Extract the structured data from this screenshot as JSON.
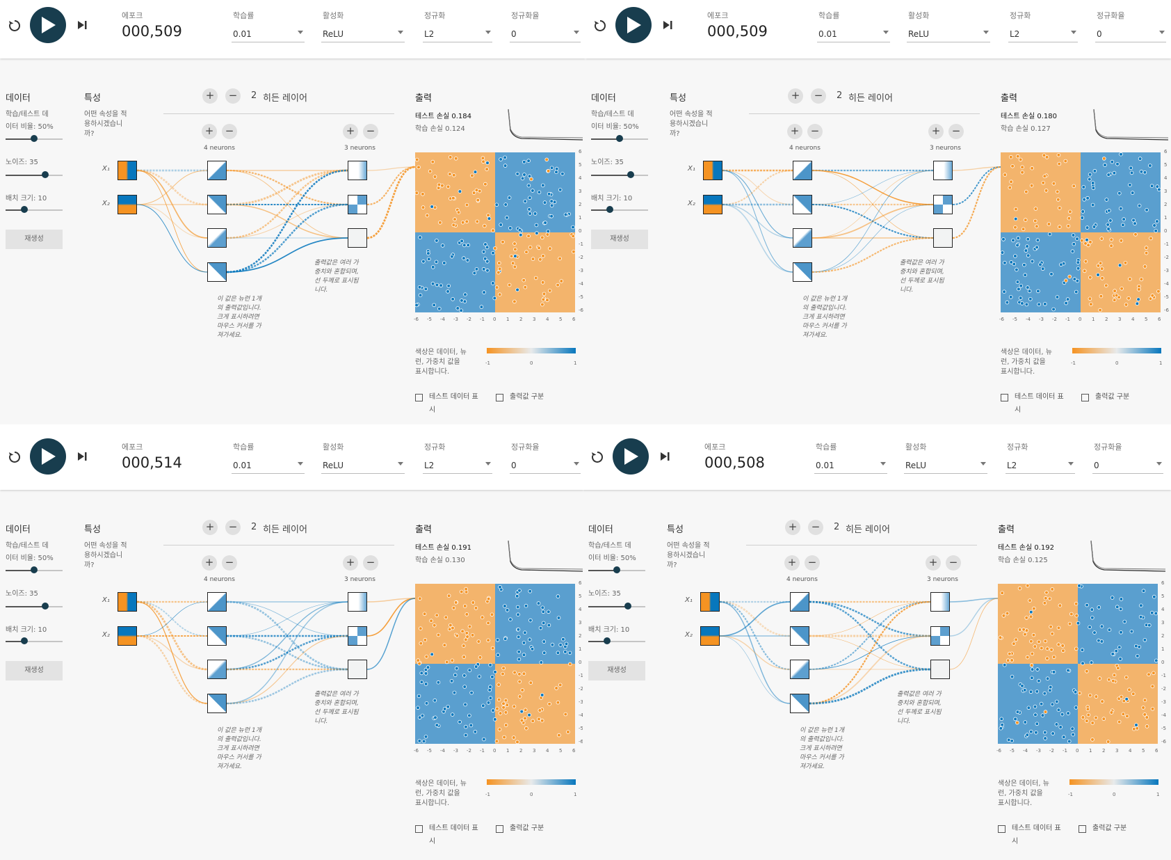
{
  "labels": {
    "epoch": "에포크",
    "learning_rate": "학습률",
    "activation": "활성화",
    "regularization": "정규화",
    "regularization_rate": "정규화율",
    "data": "데이터",
    "ratio_line1": "학습/테스트 데",
    "ratio_line2": "이터 비율:  50%",
    "noise": "노이즈:  35",
    "batch": "배치 크기:  10",
    "regenerate": "재생성",
    "features": "특성",
    "features_q1": "어떤 속성을 적",
    "features_q2": "용하시겠습니",
    "features_q3": "까?",
    "hidden_layers": "히든 레이어",
    "hidden_layer_count": "2",
    "layer1_neurons": "4 neurons",
    "layer2_neurons": "3 neurons",
    "plus": "+",
    "minus": "−",
    "x1": "X₁",
    "x2": "X₂",
    "note_neuron_1": "이 값은 뉴런 1개",
    "note_neuron_2": "의 출력값입니다.",
    "note_neuron_3": "크게 표시하려면",
    "note_neuron_4": "마우스 커서를 가",
    "note_neuron_5": "져가세요.",
    "note_weight_1": "출력값은 여러 가",
    "note_weight_2": "중치와 혼합되며,",
    "note_weight_3": "선 두께로 표시됩",
    "note_weight_4": "니다.",
    "output": "출력",
    "legend_1": "색상은 데이터, 뉴",
    "legend_2": "런, 가중치 값을",
    "legend_3": "표시합니다.",
    "legend_min": "-1",
    "legend_mid": "0",
    "legend_max": "1",
    "show_test_1": "테스트 데이터 표",
    "show_test_2": "시",
    "discretize": "출력값 구분",
    "x_ticks": [
      "-6",
      "-5",
      "-4",
      "-3",
      "-2",
      "-1",
      "0",
      "1",
      "2",
      "3",
      "4",
      "5",
      "6"
    ],
    "y_ticks": [
      "6",
      "5",
      "4",
      "3",
      "2",
      "1",
      "0",
      "-1",
      "-2",
      "-3",
      "-4",
      "-5",
      "-6"
    ]
  },
  "panels": [
    {
      "epoch": "000,509",
      "learning_rate": "0.01",
      "activation": "ReLU",
      "regularization": "L2",
      "regularization_rate": "0",
      "test_loss": "테스트 손실 0.184",
      "train_loss": "학습 손실 0.124",
      "ratio_level": 0.5,
      "noise_level": 0.7,
      "batch_level": 0.33
    },
    {
      "epoch": "000,509",
      "learning_rate": "0.01",
      "activation": "ReLU",
      "regularization": "L2",
      "regularization_rate": "0",
      "test_loss": "테스트 손실 0.180",
      "train_loss": "학습 손실 0.127",
      "ratio_level": 0.5,
      "noise_level": 0.7,
      "batch_level": 0.33
    },
    {
      "epoch": "000,514",
      "learning_rate": "0.01",
      "activation": "ReLU",
      "regularization": "L2",
      "regularization_rate": "0",
      "test_loss": "테스트 손실 0.191",
      "train_loss": "학습 손실 0.130",
      "ratio_level": 0.5,
      "noise_level": 0.7,
      "batch_level": 0.33
    },
    {
      "epoch": "000,508",
      "learning_rate": "0.01",
      "activation": "ReLU",
      "regularization": "L2",
      "regularization_rate": "0",
      "test_loss": "테스트 손실 0.192",
      "train_loss": "학습 손실 0.125",
      "ratio_level": 0.5,
      "noise_level": 0.7,
      "batch_level": 0.33
    }
  ],
  "icons": {
    "reset": "reset-icon",
    "play": "play-icon",
    "step": "step-icon",
    "dropdown": "chevron-down-icon"
  },
  "colors": {
    "orange": "#f59322",
    "blue": "#0877bd",
    "neutral": "#e8eaeb",
    "play_button": "#183d4e"
  }
}
